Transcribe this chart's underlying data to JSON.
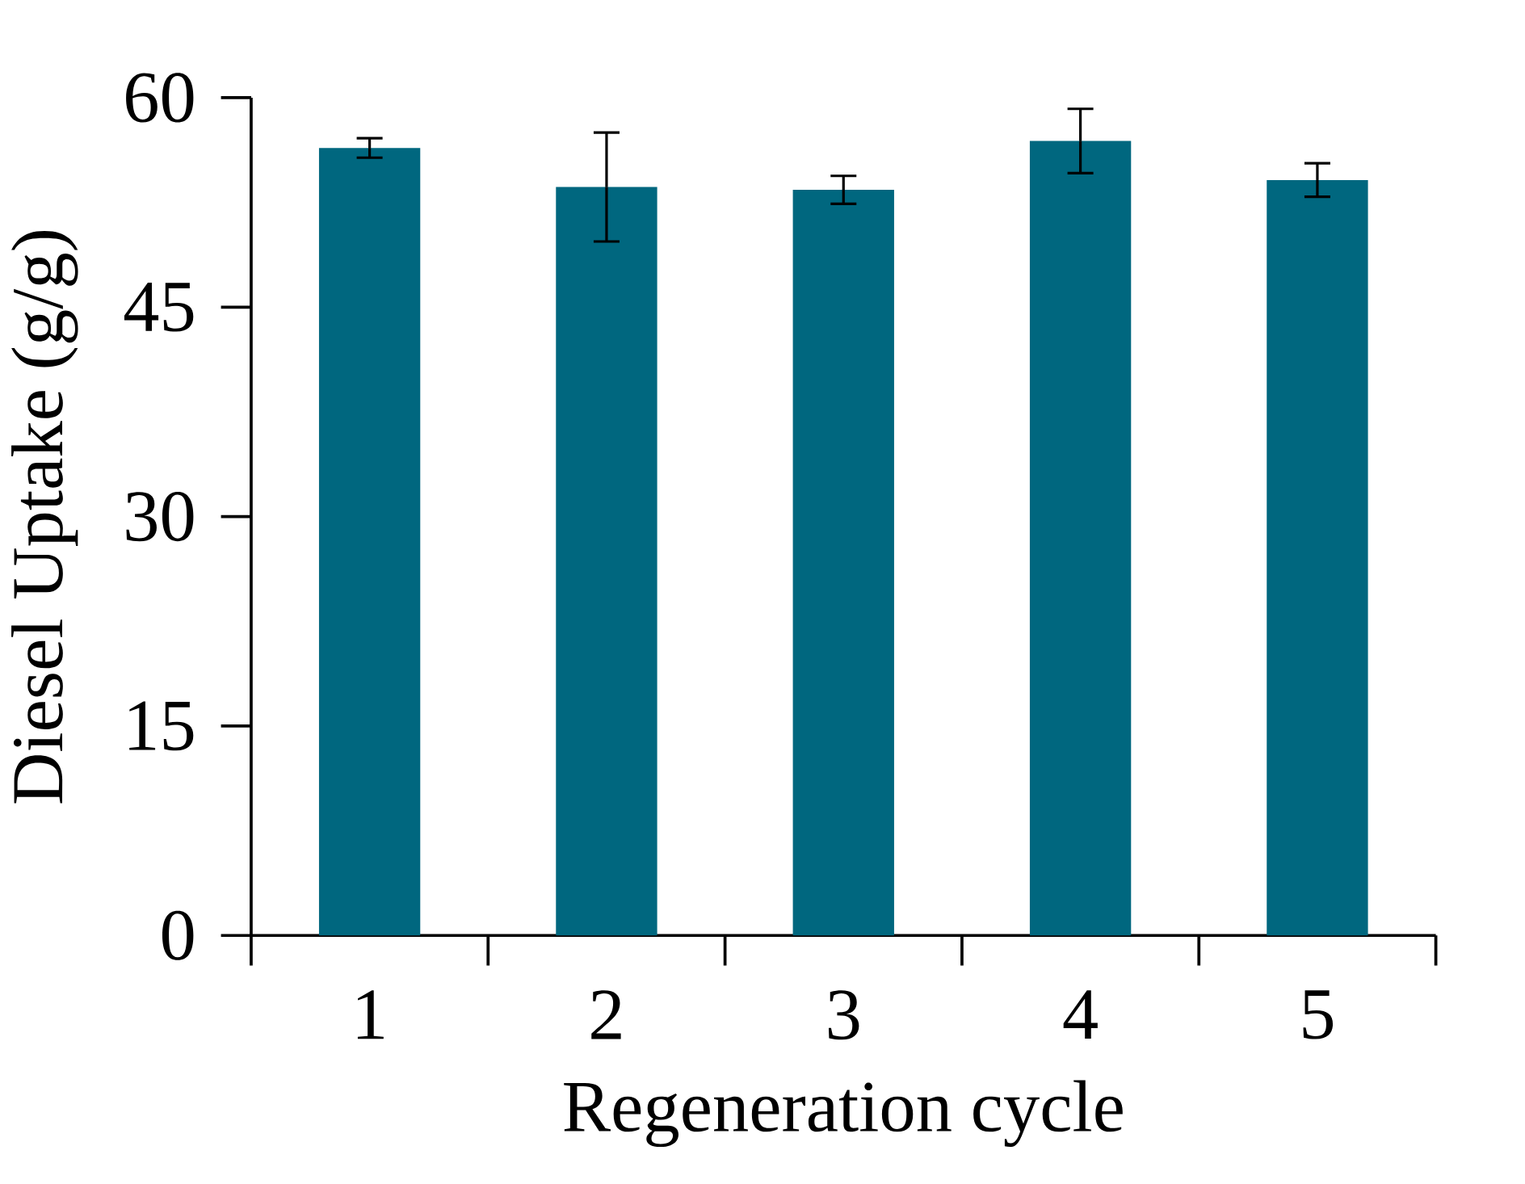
{
  "chart_data": {
    "type": "bar",
    "xlabel": "Regeneration cycle",
    "ylabel": "Diesel Uptake (g/g)",
    "categories": [
      "1",
      "2",
      "3",
      "4",
      "5"
    ],
    "values": [
      56.4,
      53.6,
      53.4,
      56.9,
      54.1
    ],
    "errors": [
      0.7,
      3.9,
      1.0,
      2.3,
      1.2
    ],
    "color": "#00677f",
    "ylim": [
      0,
      60
    ],
    "yticks": [
      0,
      15,
      30,
      45,
      60
    ]
  }
}
